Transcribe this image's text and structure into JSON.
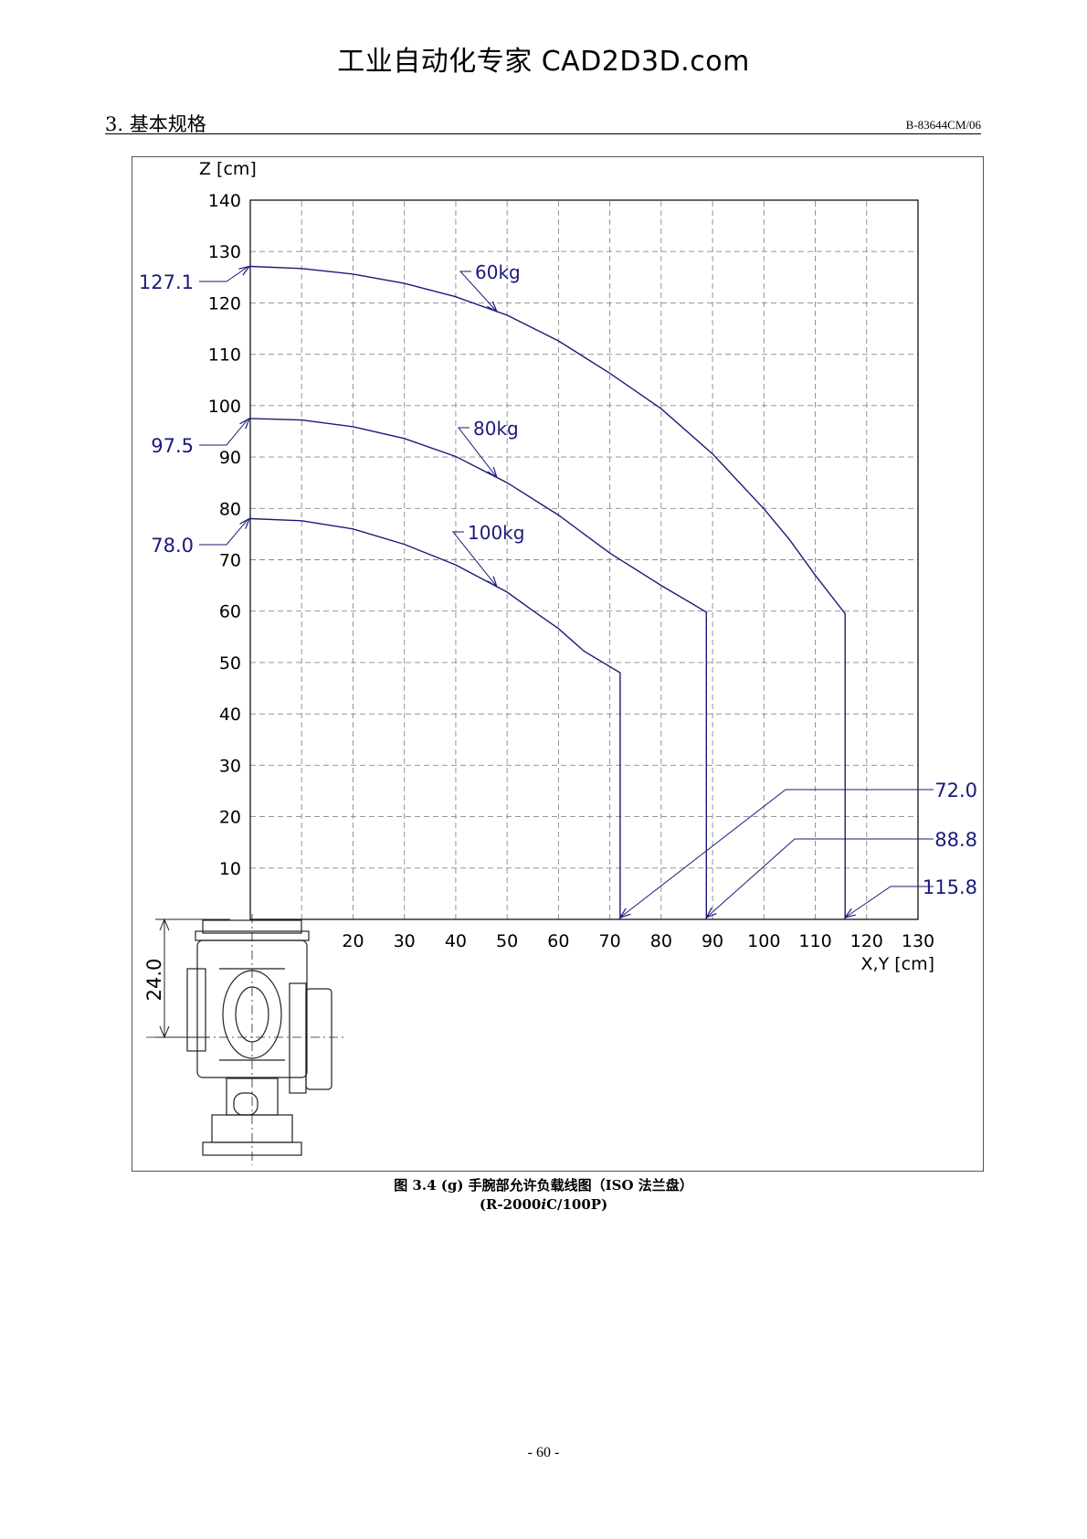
{
  "watermark": "工业自动化专家 CAD2D3D.com",
  "header": {
    "section_title": "3. 基本规格",
    "doc_id": "B-83644CM/06"
  },
  "caption": {
    "line1": "图 3.4 (g)  手腕部允许负载线图（ISO 法兰盘）",
    "line2_prefix": "(R-2000",
    "line2_italic": "i",
    "line2_suffix": "C/100P)"
  },
  "page_number": "- 60 -",
  "colors": {
    "curve": "#1a1a7a",
    "grid": "#888888",
    "axis": "#000000",
    "label": "#1a1a7a"
  },
  "chart_data": {
    "type": "line",
    "xlabel": "X,Y [cm]",
    "ylabel": "Z [cm]",
    "xlim": [
      0,
      130
    ],
    "ylim": [
      0,
      140
    ],
    "x_ticks": [
      20,
      30,
      40,
      50,
      60,
      70,
      80,
      90,
      100,
      110,
      120,
      130
    ],
    "y_ticks": [
      10,
      20,
      30,
      40,
      50,
      60,
      70,
      80,
      90,
      100,
      110,
      120,
      130,
      140
    ],
    "grid": true,
    "series": [
      {
        "name": "60kg",
        "z_max_label": "127.1",
        "reach_label": "115.8",
        "points": [
          [
            0,
            127.1
          ],
          [
            10,
            126.7
          ],
          [
            20,
            125.6
          ],
          [
            30,
            123.8
          ],
          [
            40,
            121.2
          ],
          [
            50,
            117.6
          ],
          [
            60,
            112.6
          ],
          [
            70,
            106.3
          ],
          [
            80,
            99.4
          ],
          [
            90,
            90.6
          ],
          [
            100,
            79.9
          ],
          [
            105,
            73.9
          ],
          [
            110,
            67.0
          ],
          [
            115.8,
            59.5
          ],
          [
            115.8,
            0
          ]
        ]
      },
      {
        "name": "80kg",
        "z_max_label": "97.5",
        "reach_label": "88.8",
        "points": [
          [
            0,
            97.5
          ],
          [
            10,
            97.2
          ],
          [
            20,
            95.9
          ],
          [
            30,
            93.6
          ],
          [
            40,
            90.1
          ],
          [
            50,
            85.0
          ],
          [
            60,
            78.7
          ],
          [
            70,
            71.3
          ],
          [
            80,
            65.0
          ],
          [
            88.8,
            59.8
          ],
          [
            88.8,
            0
          ]
        ]
      },
      {
        "name": "100kg",
        "z_max_label": "78.0",
        "reach_label": "72.0",
        "points": [
          [
            0,
            78.0
          ],
          [
            10,
            77.6
          ],
          [
            20,
            76.0
          ],
          [
            30,
            73.0
          ],
          [
            40,
            69.0
          ],
          [
            50,
            63.7
          ],
          [
            55,
            60.1
          ],
          [
            60,
            56.6
          ],
          [
            65,
            52.2
          ],
          [
            72.0,
            48.0
          ],
          [
            72.0,
            0
          ]
        ]
      }
    ],
    "wrist_dimension_label": "24.0"
  }
}
